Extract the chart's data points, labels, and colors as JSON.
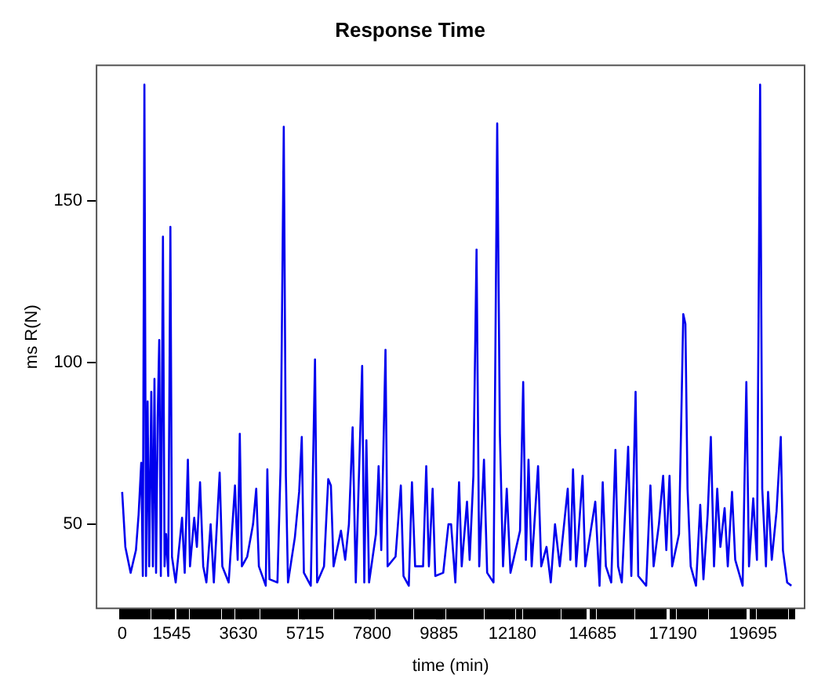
{
  "chart_data": {
    "type": "line",
    "title": "Response Time",
    "xlabel": "time (min)",
    "ylabel": "ms R(N)",
    "x": [
      0,
      99,
      264,
      430,
      513,
      595,
      645,
      694,
      744,
      794,
      843,
      909,
      959,
      1008,
      1058,
      1108,
      1157,
      1207,
      1273,
      1323,
      1372,
      1438,
      1505,
      1554,
      1670,
      1869,
      1952,
      2051,
      2117,
      2249,
      2332,
      2431,
      2530,
      2629,
      2761,
      2861,
      3043,
      3126,
      3324,
      3522,
      3605,
      3671,
      3737,
      3903,
      4085,
      4184,
      4267,
      4482,
      4531,
      4598,
      4846,
      4945,
      5044,
      5110,
      5176,
      5391,
      5524,
      5606,
      5672,
      5887,
      6019,
      6085,
      6300,
      6432,
      6515,
      6598,
      6829,
      6961,
      7077,
      7193,
      7292,
      7491,
      7557,
      7623,
      7706,
      7921,
      8004,
      8087,
      8219,
      8285,
      8533,
      8698,
      8781,
      8946,
      9045,
      9144,
      9392,
      9491,
      9574,
      9690,
      9773,
      10021,
      10184,
      10267,
      10399,
      10515,
      10598,
      10763,
      10846,
      10962,
      11061,
      11144,
      11293,
      11392,
      11591,
      11706,
      11789,
      11888,
      12004,
      12120,
      12418,
      12517,
      12600,
      12683,
      12782,
      12981,
      13080,
      13245,
      13378,
      13510,
      13659,
      13907,
      13990,
      14072,
      14172,
      14370,
      14453,
      14767,
      14900,
      14999,
      15098,
      15264,
      15396,
      15479,
      15595,
      15793,
      15892,
      16025,
      16108,
      16356,
      16488,
      16588,
      16753,
      16885,
      16984,
      17084,
      17166,
      17381,
      17514,
      17580,
      17646,
      17745,
      17911,
      18043,
      18143,
      18275,
      18374,
      18473,
      18573,
      18672,
      18804,
      18903,
      19035,
      19135,
      19366,
      19482,
      19565,
      19697,
      19813,
      19912,
      19978,
      20094,
      20160,
      20276,
      20425,
      20557,
      20624,
      20756,
      20888
    ],
    "series": [
      {
        "color": "#0000ee",
        "values": [
          60,
          43,
          35,
          42,
          53,
          69,
          34,
          186,
          34,
          88,
          37,
          91,
          37,
          95,
          35,
          83,
          107,
          34,
          139,
          37,
          47,
          34,
          142,
          40,
          32,
          52,
          35,
          70,
          37,
          52,
          43,
          63,
          37,
          32,
          50,
          32,
          66,
          37,
          32,
          62,
          39,
          78,
          37,
          40,
          50,
          61,
          37,
          31,
          67,
          33,
          32,
          68,
          173,
          65,
          32,
          46,
          60,
          77,
          35,
          31,
          101,
          32,
          37,
          64,
          62,
          37,
          48,
          39,
          50,
          80,
          32,
          99,
          32,
          76,
          32,
          47,
          68,
          42,
          104,
          37,
          40,
          62,
          34,
          31,
          63,
          37,
          37,
          68,
          37,
          61,
          34,
          35,
          50,
          50,
          32,
          63,
          37,
          57,
          39,
          65,
          135,
          37,
          70,
          35,
          32,
          174,
          78,
          37,
          61,
          35,
          48,
          94,
          39,
          70,
          37,
          68,
          37,
          43,
          32,
          50,
          37,
          61,
          39,
          67,
          37,
          65,
          37,
          57,
          31,
          63,
          37,
          32,
          73,
          37,
          32,
          74,
          34,
          91,
          34,
          31,
          62,
          37,
          50,
          65,
          42,
          65,
          37,
          47,
          115,
          112,
          61,
          37,
          31,
          56,
          33,
          53,
          77,
          37,
          61,
          43,
          55,
          37,
          60,
          39,
          31,
          94,
          37,
          58,
          39,
          186,
          61,
          37,
          60,
          39,
          54,
          77,
          42,
          32,
          31
        ]
      }
    ],
    "xlim": [
      -800,
      21300
    ],
    "ylim": [
      24,
      192
    ],
    "yticks": [
      50,
      100,
      150
    ],
    "xticks": [
      0,
      1545,
      3630,
      5715,
      7800,
      9885,
      12180,
      14685,
      17190,
      19695,
      {
        "value": 200,
        "label": null
      },
      {
        "value": 400,
        "label": null
      },
      {
        "value": 600,
        "label": null
      },
      {
        "value": 800,
        "label": null
      },
      {
        "value": 1000,
        "label": null
      },
      {
        "value": 1200,
        "label": null
      },
      {
        "value": 1400,
        "label": null
      },
      {
        "value": 1800,
        "label": null
      },
      {
        "value": 2000,
        "label": null
      },
      {
        "value": 2200,
        "label": null
      },
      {
        "value": 2400,
        "label": null
      },
      {
        "value": 2600,
        "label": null
      },
      {
        "value": 2800,
        "label": null
      },
      {
        "value": 3000,
        "label": null
      },
      {
        "value": 3200,
        "label": null
      },
      {
        "value": 3400,
        "label": null
      },
      {
        "value": 3800,
        "label": null
      },
      {
        "value": 4000,
        "label": null
      },
      {
        "value": 4200,
        "label": null
      },
      {
        "value": 4400,
        "label": null
      },
      {
        "value": 4600,
        "label": null
      },
      {
        "value": 4800,
        "label": null
      },
      {
        "value": 5000,
        "label": null
      },
      {
        "value": 5200,
        "label": null
      },
      {
        "value": 5400,
        "label": null
      },
      {
        "value": 5600,
        "label": null
      },
      {
        "value": 5900,
        "label": null
      },
      {
        "value": 6100,
        "label": null
      },
      {
        "value": 6300,
        "label": null
      },
      {
        "value": 6500,
        "label": null
      },
      {
        "value": 6700,
        "label": null
      },
      {
        "value": 6900,
        "label": null
      },
      {
        "value": 7100,
        "label": null
      },
      {
        "value": 7300,
        "label": null
      },
      {
        "value": 7500,
        "label": null
      },
      {
        "value": 7700,
        "label": null
      },
      {
        "value": 8000,
        "label": null
      },
      {
        "value": 8200,
        "label": null
      },
      {
        "value": 8400,
        "label": null
      },
      {
        "value": 8600,
        "label": null
      },
      {
        "value": 8800,
        "label": null
      },
      {
        "value": 9000,
        "label": null
      },
      {
        "value": 9200,
        "label": null
      },
      {
        "value": 9400,
        "label": null
      },
      {
        "value": 9600,
        "label": null
      },
      {
        "value": 9800,
        "label": null
      },
      {
        "value": 10000,
        "label": null
      },
      {
        "value": 10200,
        "label": null
      },
      {
        "value": 10400,
        "label": null
      },
      {
        "value": 10600,
        "label": null
      },
      {
        "value": 10800,
        "label": null
      },
      {
        "value": 11000,
        "label": null
      },
      {
        "value": 11200,
        "label": null
      },
      {
        "value": 11400,
        "label": null
      },
      {
        "value": 11600,
        "label": null
      },
      {
        "value": 11800,
        "label": null
      },
      {
        "value": 12000,
        "label": null
      },
      {
        "value": 12400,
        "label": null
      },
      {
        "value": 12600,
        "label": null
      },
      {
        "value": 12800,
        "label": null
      },
      {
        "value": 13000,
        "label": null
      },
      {
        "value": 13200,
        "label": null
      },
      {
        "value": 13400,
        "label": null
      },
      {
        "value": 13600,
        "label": null
      },
      {
        "value": 13800,
        "label": null
      },
      {
        "value": 14000,
        "label": null
      },
      {
        "value": 14200,
        "label": null
      },
      {
        "value": 14400,
        "label": null
      },
      {
        "value": 14900,
        "label": null
      },
      {
        "value": 15100,
        "label": null
      },
      {
        "value": 15300,
        "label": null
      },
      {
        "value": 15500,
        "label": null
      },
      {
        "value": 15700,
        "label": null
      },
      {
        "value": 15900,
        "label": null
      },
      {
        "value": 16100,
        "label": null
      },
      {
        "value": 16300,
        "label": null
      },
      {
        "value": 16500,
        "label": null
      },
      {
        "value": 16700,
        "label": null
      },
      {
        "value": 16900,
        "label": null
      },
      {
        "value": 17400,
        "label": null
      },
      {
        "value": 17600,
        "label": null
      },
      {
        "value": 17800,
        "label": null
      },
      {
        "value": 18000,
        "label": null
      },
      {
        "value": 18200,
        "label": null
      },
      {
        "value": 18400,
        "label": null
      },
      {
        "value": 18600,
        "label": null
      },
      {
        "value": 18800,
        "label": null
      },
      {
        "value": 19000,
        "label": null
      },
      {
        "value": 19200,
        "label": null
      },
      {
        "value": 19400,
        "label": null
      },
      {
        "value": 19900,
        "label": null
      },
      {
        "value": 20100,
        "label": null
      },
      {
        "value": 20300,
        "label": null
      },
      {
        "value": 20500,
        "label": null
      },
      {
        "value": 20700,
        "label": null
      },
      {
        "value": 20900,
        "label": null
      }
    ],
    "grid": false,
    "legend": false,
    "marker": "none",
    "line_style": "solid"
  }
}
